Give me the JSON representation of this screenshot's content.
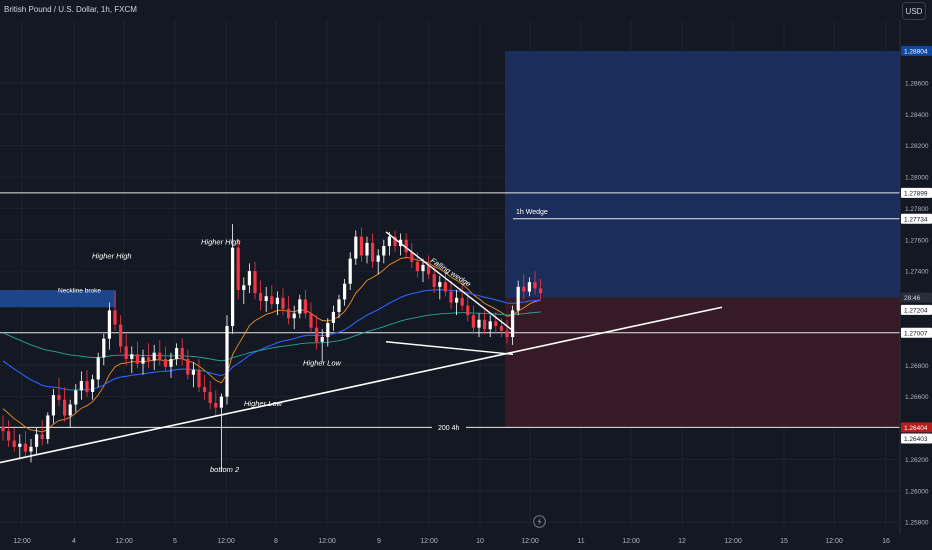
{
  "header": {
    "symbol_title": "British Pound / U.S. Dollar, 1h, FXCM",
    "currency_button": "USD"
  },
  "colors": {
    "background": "#141823",
    "grid": "#1d2230",
    "axis_text": "#b2b5be",
    "up_candle": "#ffffff",
    "down_candle": "#f23645",
    "target_zone": "#1c3061",
    "stop_zone": "#3a1c27",
    "ema_blue": "#2962ff",
    "ema_orange": "#f28d1f",
    "ema_teal": "#26a69a",
    "label_blue": "#0d47a1",
    "label_red": "#b71c1c"
  },
  "chart_data": {
    "type": "candlestick",
    "ylim": [
      1.2575,
      1.2895
    ],
    "y_ticks": [
      "1.28600",
      "1.28400",
      "1.28200",
      "1.28000",
      "1.27800",
      "1.27600",
      "1.27400",
      "1.26800",
      "1.26600",
      "1.26200",
      "1.26000",
      "1.25800"
    ],
    "x_ticks": [
      "12:00",
      "4",
      "12:00",
      "5",
      "12:00",
      "8",
      "12:00",
      "9",
      "12:00",
      "10",
      "12:00",
      "11",
      "12:00",
      "12",
      "12:00",
      "15",
      "12:00",
      "16"
    ],
    "price_labels": [
      {
        "text": "1.28804",
        "value": 1.28804,
        "style": "blue"
      },
      {
        "text": "1.27899",
        "value": 1.27899,
        "style": "light"
      },
      {
        "text": "1.27734",
        "value": 1.27734,
        "style": "light"
      },
      {
        "text": "28:46",
        "value": 1.27232,
        "style": "dark"
      },
      {
        "text": "1.27204",
        "value": 1.27204,
        "style": "light"
      },
      {
        "text": "1.27007",
        "value": 1.27007,
        "style": "light"
      },
      {
        "text": "1.26404",
        "value": 1.26404,
        "style": "red"
      },
      {
        "text": "1.26403",
        "value": 1.26403,
        "style": "light"
      }
    ],
    "horizontal_levels": [
      1.27899,
      1.27007,
      1.26404
    ],
    "annotations": [
      {
        "text": "Higher High",
        "kind": "italic"
      },
      {
        "text": "Higher High",
        "kind": "italic"
      },
      {
        "text": "Neckline broke",
        "kind": "box"
      },
      {
        "text": "Higher Low",
        "kind": "italic"
      },
      {
        "text": "Higher Low",
        "kind": "italic"
      },
      {
        "text": "bottom 2",
        "kind": "italic"
      },
      {
        "text": "Falling wedge",
        "kind": "rotated"
      },
      {
        "text": "1h Wedge",
        "kind": "plain"
      },
      {
        "text": "200 4h",
        "kind": "plain"
      }
    ],
    "candles": [
      [
        1.2641,
        1.2648,
        1.2632,
        1.2638
      ],
      [
        1.2638,
        1.2645,
        1.2628,
        1.2632
      ],
      [
        1.2632,
        1.264,
        1.2625,
        1.2628
      ],
      [
        1.2628,
        1.2636,
        1.262,
        1.263
      ],
      [
        1.263,
        1.2638,
        1.2622,
        1.2625
      ],
      [
        1.2625,
        1.2633,
        1.2618,
        1.2628
      ],
      [
        1.2628,
        1.264,
        1.2623,
        1.2636
      ],
      [
        1.2636,
        1.2645,
        1.2629,
        1.2633
      ],
      [
        1.2633,
        1.265,
        1.263,
        1.2648
      ],
      [
        1.2648,
        1.2665,
        1.2643,
        1.2661
      ],
      [
        1.2661,
        1.2672,
        1.2654,
        1.2658
      ],
      [
        1.2658,
        1.2666,
        1.2644,
        1.2648
      ],
      [
        1.2648,
        1.2658,
        1.264,
        1.2655
      ],
      [
        1.2655,
        1.2668,
        1.265,
        1.2664
      ],
      [
        1.2664,
        1.2676,
        1.2658,
        1.267
      ],
      [
        1.267,
        1.2677,
        1.266,
        1.2663
      ],
      [
        1.2663,
        1.2674,
        1.2658,
        1.2671
      ],
      [
        1.2671,
        1.2688,
        1.2666,
        1.2685
      ],
      [
        1.2685,
        1.27,
        1.268,
        1.2697
      ],
      [
        1.2697,
        1.272,
        1.269,
        1.2715
      ],
      [
        1.2715,
        1.2727,
        1.2702,
        1.2706
      ],
      [
        1.2706,
        1.2712,
        1.2688,
        1.2692
      ],
      [
        1.2692,
        1.27,
        1.268,
        1.2684
      ],
      [
        1.2684,
        1.2692,
        1.2675,
        1.2687
      ],
      [
        1.2687,
        1.2695,
        1.2678,
        1.2681
      ],
      [
        1.2681,
        1.269,
        1.2674,
        1.2685
      ],
      [
        1.2685,
        1.2694,
        1.2678,
        1.2683
      ],
      [
        1.2683,
        1.2693,
        1.2677,
        1.2688
      ],
      [
        1.2688,
        1.2696,
        1.268,
        1.2684
      ],
      [
        1.2684,
        1.2692,
        1.2676,
        1.2679
      ],
      [
        1.2679,
        1.2688,
        1.2672,
        1.2684
      ],
      [
        1.2684,
        1.2694,
        1.268,
        1.2691
      ],
      [
        1.2691,
        1.2697,
        1.268,
        1.2684
      ],
      [
        1.2684,
        1.269,
        1.2671,
        1.2674
      ],
      [
        1.2674,
        1.2682,
        1.2666,
        1.2677
      ],
      [
        1.2677,
        1.2684,
        1.2663,
        1.2666
      ],
      [
        1.2666,
        1.2674,
        1.2658,
        1.2663
      ],
      [
        1.2663,
        1.267,
        1.2652,
        1.2656
      ],
      [
        1.2656,
        1.2664,
        1.2648,
        1.2653
      ],
      [
        1.2653,
        1.2662,
        1.2612,
        1.266
      ],
      [
        1.266,
        1.2712,
        1.2655,
        1.2705
      ],
      [
        1.2705,
        1.277,
        1.27,
        1.2755
      ],
      [
        1.2755,
        1.276,
        1.2722,
        1.2728
      ],
      [
        1.2728,
        1.2736,
        1.2719,
        1.2731
      ],
      [
        1.2731,
        1.2745,
        1.2726,
        1.274
      ],
      [
        1.274,
        1.2746,
        1.2722,
        1.2726
      ],
      [
        1.2726,
        1.2734,
        1.2715,
        1.2721
      ],
      [
        1.2721,
        1.273,
        1.2714,
        1.2724
      ],
      [
        1.2724,
        1.2731,
        1.2716,
        1.2719
      ],
      [
        1.2719,
        1.2727,
        1.2712,
        1.2723
      ],
      [
        1.2723,
        1.2729,
        1.2712,
        1.2716
      ],
      [
        1.2716,
        1.2724,
        1.2706,
        1.271
      ],
      [
        1.271,
        1.2718,
        1.2703,
        1.2713
      ],
      [
        1.2713,
        1.2725,
        1.271,
        1.2722
      ],
      [
        1.2722,
        1.2728,
        1.271,
        1.2713
      ],
      [
        1.2713,
        1.272,
        1.27,
        1.2704
      ],
      [
        1.2704,
        1.2712,
        1.269,
        1.2695
      ],
      [
        1.2695,
        1.2703,
        1.2682,
        1.2698
      ],
      [
        1.2698,
        1.271,
        1.2692,
        1.2707
      ],
      [
        1.2707,
        1.2718,
        1.2702,
        1.2714
      ],
      [
        1.2714,
        1.2725,
        1.271,
        1.2722
      ],
      [
        1.2722,
        1.2735,
        1.2718,
        1.2732
      ],
      [
        1.2732,
        1.2752,
        1.2728,
        1.2748
      ],
      [
        1.2748,
        1.2766,
        1.2744,
        1.2762
      ],
      [
        1.2762,
        1.2768,
        1.2746,
        1.275
      ],
      [
        1.275,
        1.2762,
        1.2745,
        1.2758
      ],
      [
        1.2758,
        1.2764,
        1.2742,
        1.2746
      ],
      [
        1.2746,
        1.2754,
        1.2738,
        1.275
      ],
      [
        1.275,
        1.276,
        1.2745,
        1.2756
      ],
      [
        1.2756,
        1.2765,
        1.275,
        1.2762
      ],
      [
        1.2762,
        1.2766,
        1.2752,
        1.2756
      ],
      [
        1.2756,
        1.2764,
        1.275,
        1.276
      ],
      [
        1.276,
        1.2764,
        1.2748,
        1.2752
      ],
      [
        1.2752,
        1.2758,
        1.2742,
        1.2746
      ],
      [
        1.2746,
        1.2752,
        1.2736,
        1.274
      ],
      [
        1.274,
        1.2748,
        1.2733,
        1.2744
      ],
      [
        1.2744,
        1.275,
        1.2735,
        1.2738
      ],
      [
        1.2738,
        1.2744,
        1.2726,
        1.273
      ],
      [
        1.273,
        1.2737,
        1.2722,
        1.2733
      ],
      [
        1.2733,
        1.274,
        1.2724,
        1.2727
      ],
      [
        1.2727,
        1.2734,
        1.2716,
        1.272
      ],
      [
        1.272,
        1.2728,
        1.2712,
        1.2723
      ],
      [
        1.2723,
        1.2731,
        1.2715,
        1.2718
      ],
      [
        1.2718,
        1.2726,
        1.2708,
        1.2712
      ],
      [
        1.2712,
        1.2718,
        1.27,
        1.2704
      ],
      [
        1.2704,
        1.2713,
        1.2698,
        1.2709
      ],
      [
        1.2709,
        1.2715,
        1.27,
        1.2703
      ],
      [
        1.2703,
        1.2712,
        1.2698,
        1.2708
      ],
      [
        1.2708,
        1.2714,
        1.27,
        1.2705
      ],
      [
        1.2705,
        1.271,
        1.2698,
        1.2702
      ],
      [
        1.2702,
        1.2709,
        1.2694,
        1.2698
      ],
      [
        1.2698,
        1.2718,
        1.2693,
        1.2715
      ],
      [
        1.2715,
        1.2734,
        1.2712,
        1.273
      ],
      [
        1.273,
        1.2738,
        1.2722,
        1.2727
      ],
      [
        1.2727,
        1.2736,
        1.2724,
        1.2733
      ],
      [
        1.2733,
        1.274,
        1.2725,
        1.2729
      ],
      [
        1.2729,
        1.2735,
        1.2722,
        1.2726
      ]
    ]
  }
}
